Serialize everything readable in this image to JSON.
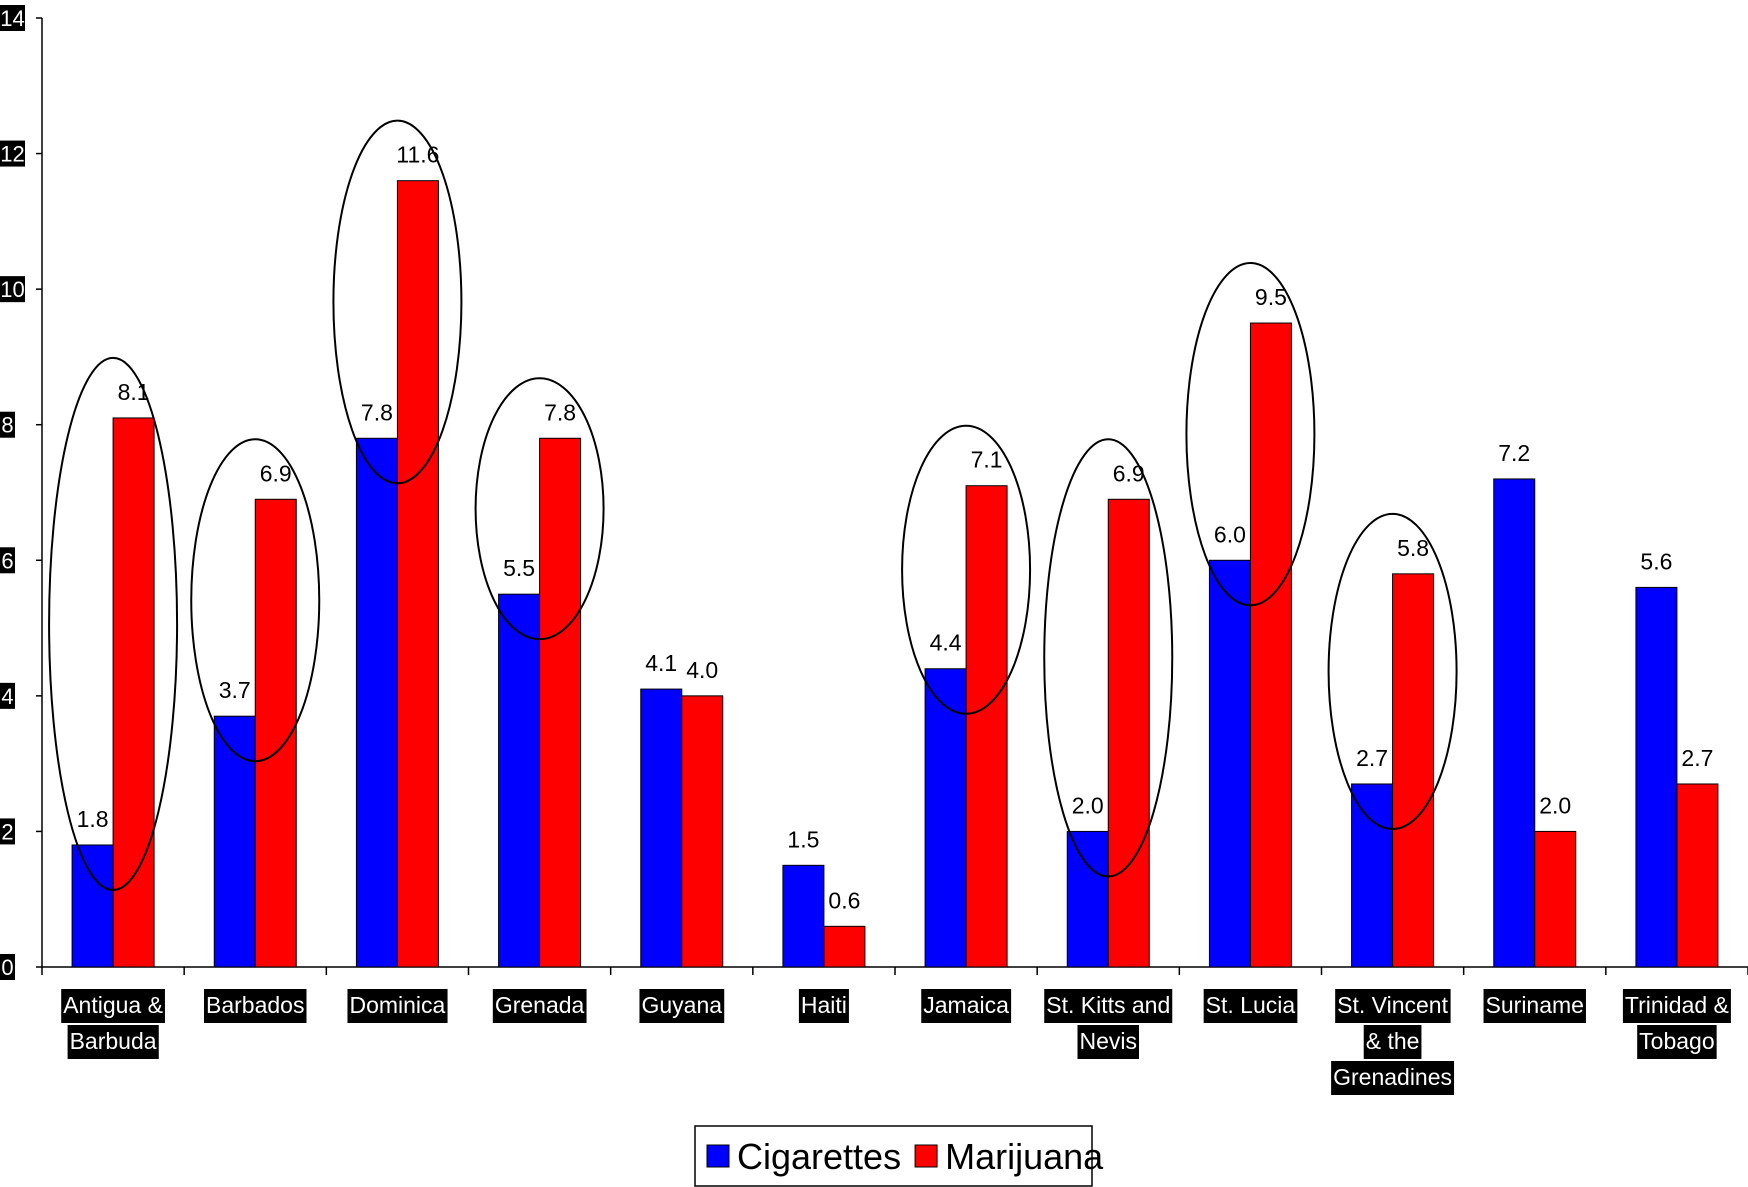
{
  "chart_data": {
    "type": "bar",
    "categories": [
      [
        "Antigua &",
        "Barbuda"
      ],
      [
        "Barbados"
      ],
      [
        "Dominica"
      ],
      [
        "Grenada"
      ],
      [
        "Guyana"
      ],
      [
        "Haiti"
      ],
      [
        "Jamaica"
      ],
      [
        "St. Kitts and",
        "Nevis"
      ],
      [
        "St. Lucia"
      ],
      [
        "St. Vincent",
        "& the",
        "Grenadines"
      ],
      [
        "Suriname"
      ],
      [
        "Trinidad &",
        "Tobago"
      ]
    ],
    "series": [
      {
        "name": "Cigarettes",
        "color": "#0000FF",
        "values": [
          1.8,
          3.7,
          7.8,
          5.5,
          4.1,
          1.5,
          4.4,
          2.0,
          6.0,
          2.7,
          7.2,
          5.6
        ],
        "labels": [
          "1.8",
          "3.7",
          "7.8",
          "5.5",
          "4.1",
          "1.5",
          "4.4",
          "2.0",
          "6.0",
          "2.7",
          "7.2",
          "5.6"
        ]
      },
      {
        "name": "Marijuana",
        "color": "#FF0000",
        "values": [
          8.1,
          6.9,
          11.6,
          7.8,
          4.0,
          0.6,
          7.1,
          6.9,
          9.5,
          5.8,
          2.0,
          2.7
        ],
        "labels": [
          "8.1",
          "6.9",
          "11.6",
          "7.8",
          "4.0",
          "0.6",
          "7.1",
          "6.9",
          "9.5",
          "5.8",
          "2.0",
          "2.7"
        ]
      }
    ],
    "ylim": [
      0,
      14
    ],
    "yticks": [
      "0",
      "2",
      "4",
      "6",
      "8",
      "10",
      "12",
      "14"
    ],
    "highlighted_categories": [
      0,
      1,
      2,
      3,
      6,
      7,
      8,
      9
    ],
    "grid": false,
    "legend_position": "bottom-center",
    "title": "",
    "xlabel": "",
    "ylabel": ""
  }
}
